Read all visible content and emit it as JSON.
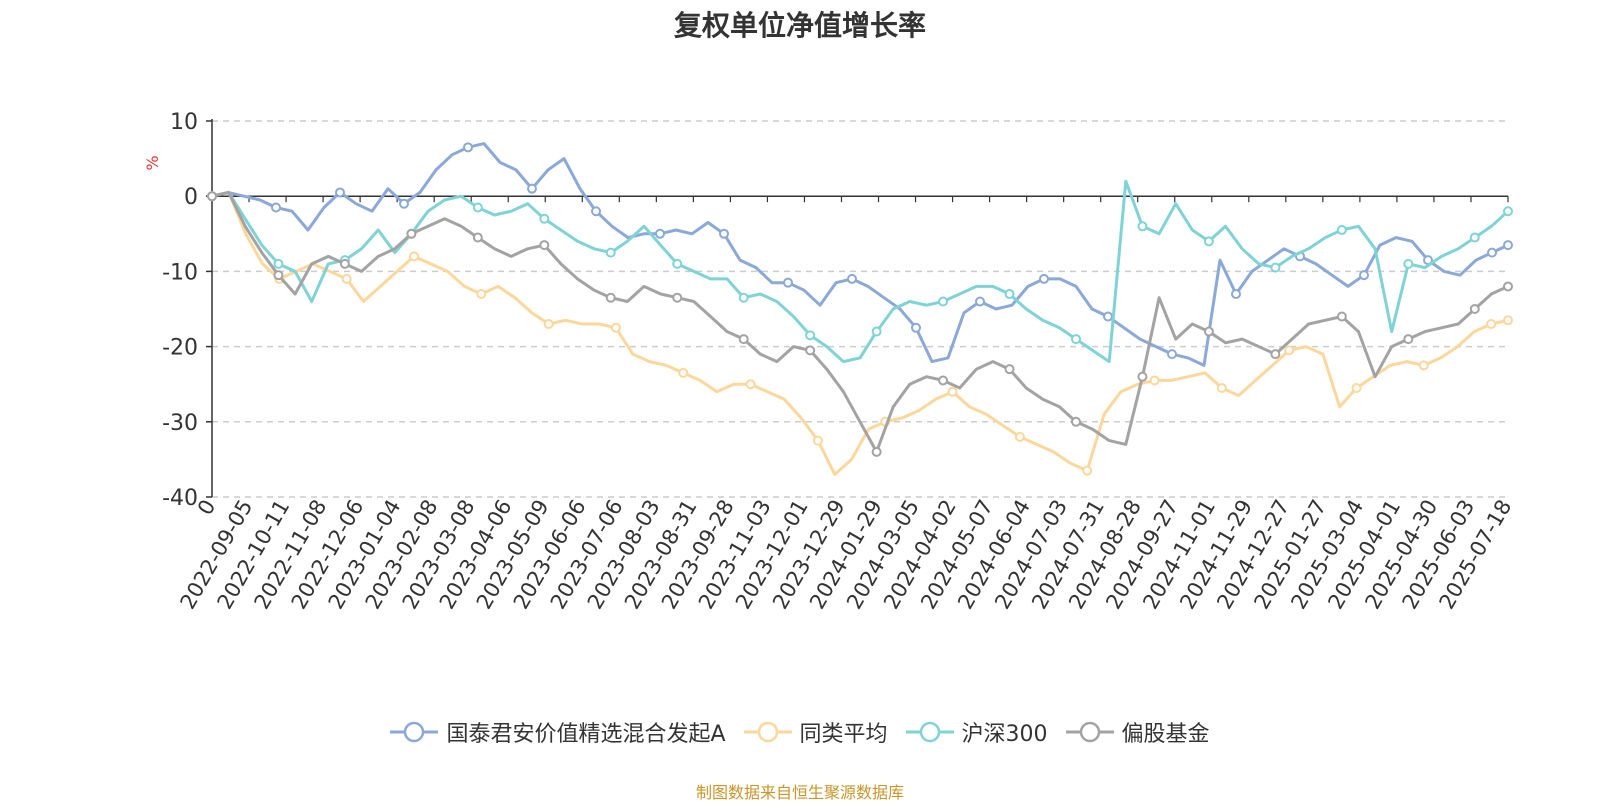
{
  "title": "复权单位净值增长率",
  "source_note": "制图数据来自恒生聚源数据库",
  "chart_data": {
    "type": "line",
    "title": "复权单位净值增长率",
    "ylabel": "%",
    "ylim": [
      -40,
      10
    ],
    "yticks": [
      10,
      0,
      -10,
      -20,
      -30,
      -40
    ],
    "grid": true,
    "legend_position": "bottom",
    "x_tick_labels": [
      "0",
      "2022-09-05",
      "2022-10-11",
      "2022-11-08",
      "2022-12-06",
      "2023-01-04",
      "2023-02-08",
      "2023-03-08",
      "2023-04-06",
      "2023-05-09",
      "2023-06-06",
      "2023-07-06",
      "2023-08-03",
      "2023-08-31",
      "2023-09-28",
      "2023-11-03",
      "2023-12-01",
      "2023-12-29",
      "2024-01-29",
      "2024-03-05",
      "2024-04-02",
      "2024-05-07",
      "2024-06-04",
      "2024-07-03",
      "2024-07-31",
      "2024-08-28",
      "2024-09-27",
      "2024-11-01",
      "2024-11-29",
      "2024-12-27",
      "2025-01-27",
      "2025-03-04",
      "2025-04-01",
      "2025-04-30",
      "2025-06-03",
      "2025-07-18"
    ],
    "series": [
      {
        "name": "国泰君安价值精选混合发起A",
        "color": "#8aa8d8",
        "values": [
          0,
          0.5,
          0,
          -0.5,
          -1.5,
          -2,
          -4.5,
          -1.5,
          0.5,
          -1,
          -2,
          1,
          -1,
          0.5,
          3.5,
          5.5,
          6.5,
          7,
          4.5,
          3.5,
          1,
          3.5,
          5,
          1,
          -2,
          -4,
          -5.5,
          -5,
          -5,
          -4.5,
          -5,
          -3.5,
          -5,
          -8.5,
          -9.5,
          -11.5,
          -11.5,
          -12.5,
          -14.5,
          -11.5,
          -11,
          -12,
          -13.5,
          -15,
          -17.5,
          -22,
          -21.5,
          -15.5,
          -14,
          -15,
          -14.5,
          -12,
          -11,
          -11,
          -12,
          -15,
          -16,
          -17.5,
          -19,
          -20,
          -21,
          -21.5,
          -22.5,
          -8.5,
          -13,
          -10,
          -8.5,
          -7,
          -8,
          -9,
          -10.5,
          -12,
          -10.5,
          -6.5,
          -5.5,
          -6,
          -8.5,
          -10,
          -10.5,
          -8.5,
          -7.5,
          -6.5
        ]
      },
      {
        "name": "同类平均",
        "color": "#fcd79b",
        "values": [
          0,
          0.5,
          -5,
          -9,
          -11,
          -10,
          -9,
          -10,
          -11,
          -14,
          -12,
          -10,
          -8,
          -9,
          -10,
          -12,
          -13,
          -12,
          -13.5,
          -15.5,
          -17,
          -16.5,
          -17,
          -17,
          -17.5,
          -21,
          -22,
          -22.5,
          -23.5,
          -24.5,
          -26,
          -25,
          -25,
          -26,
          -27,
          -29.5,
          -32.5,
          -37,
          -35,
          -31,
          -30,
          -29.5,
          -28.5,
          -27,
          -26,
          -28,
          -29,
          -30.5,
          -32,
          -33,
          -34,
          -35.5,
          -36.5,
          -29,
          -26,
          -25,
          -24.5,
          -24.5,
          -24,
          -23.5,
          -25.5,
          -26.5,
          -24.5,
          -22.5,
          -20.5,
          -20,
          -21,
          -28,
          -25.5,
          -24,
          -22.5,
          -22,
          -22.5,
          -21.5,
          -20,
          -18,
          -17,
          -16.5
        ]
      },
      {
        "name": "沪深300",
        "color": "#7fd3d6",
        "values": [
          0,
          0.5,
          -3,
          -6.5,
          -9,
          -10,
          -14,
          -9,
          -8.5,
          -7,
          -4.5,
          -7.5,
          -5,
          -2,
          -0.5,
          0,
          -1.5,
          -2.5,
          -2,
          -1,
          -3,
          -4.5,
          -6,
          -7,
          -7.5,
          -6,
          -4,
          -6.5,
          -9,
          -10,
          -11,
          -11,
          -13.5,
          -13,
          -14,
          -16,
          -18.5,
          -20,
          -22,
          -21.5,
          -18,
          -15,
          -14,
          -14.5,
          -14,
          -13,
          -12,
          -12,
          -13,
          -15,
          -16.5,
          -17.5,
          -19,
          -20.5,
          -22,
          2,
          -4,
          -5,
          -1,
          -4.5,
          -6,
          -4,
          -7,
          -9,
          -9.5,
          -8,
          -7,
          -5.5,
          -4.5,
          -4,
          -7,
          -18,
          -9,
          -9.5,
          -8,
          -7,
          -5.5,
          -4,
          -2
        ]
      },
      {
        "name": "偏股基金",
        "color": "#a3a3a3",
        "values": [
          0,
          0.5,
          -4,
          -7.5,
          -10.5,
          -13,
          -9,
          -8,
          -9,
          -10,
          -8,
          -7,
          -5,
          -4,
          -3,
          -4,
          -5.5,
          -7,
          -8,
          -7,
          -6.5,
          -9,
          -11,
          -12.5,
          -13.5,
          -14,
          -12,
          -13,
          -13.5,
          -14,
          -16,
          -18,
          -19,
          -21,
          -22,
          -20,
          -20.5,
          -23,
          -26,
          -30,
          -34,
          -28,
          -25,
          -24,
          -24.5,
          -25.5,
          -23,
          -22,
          -23,
          -25.5,
          -27,
          -28,
          -30,
          -31,
          -32.5,
          -33,
          -24,
          -13.5,
          -19,
          -17,
          -18,
          -19.5,
          -19,
          -20,
          -21,
          -19,
          -17,
          -16.5,
          -16,
          -18,
          -24,
          -20,
          -19,
          -18,
          -17.5,
          -17,
          -15,
          -13,
          -12
        ]
      }
    ]
  }
}
